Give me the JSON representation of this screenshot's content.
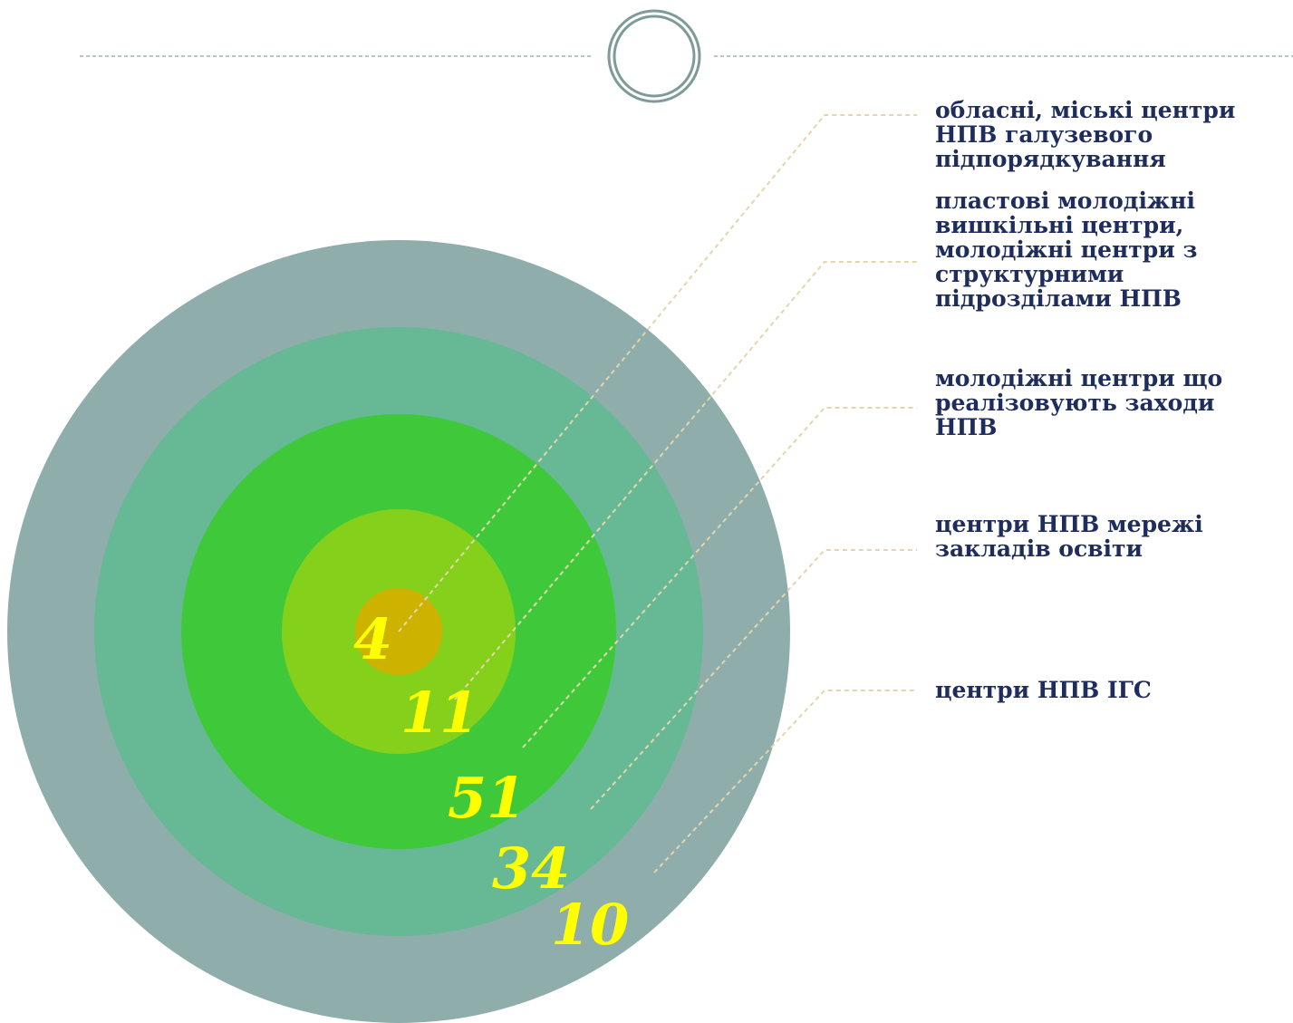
{
  "diagram": {
    "rings": [
      {
        "label": "центри НПВ ІГС",
        "value": "10",
        "color": "#8eadab"
      },
      {
        "label": "центри НПВ мережі закладів освіти",
        "value": "34",
        "color": "#66b994"
      },
      {
        "label": "молодіжні центри що реалізовують заходи НПВ",
        "value": "51",
        "color": "#3fc93a"
      },
      {
        "label": "пластові молодіжні вишкільні центри, молодіжні центри з структурними підрозділами НПВ",
        "value": "11",
        "color": "#84d01b"
      },
      {
        "label": "обласні, міські центри НПВ галузевого підпорядкування",
        "value": "4",
        "color": "#cdb200"
      }
    ],
    "value_color": "#ffff00",
    "text_color": "#1f2d5c",
    "connector_color": "#e4d5ad",
    "divider_color": "#7f9b99"
  }
}
